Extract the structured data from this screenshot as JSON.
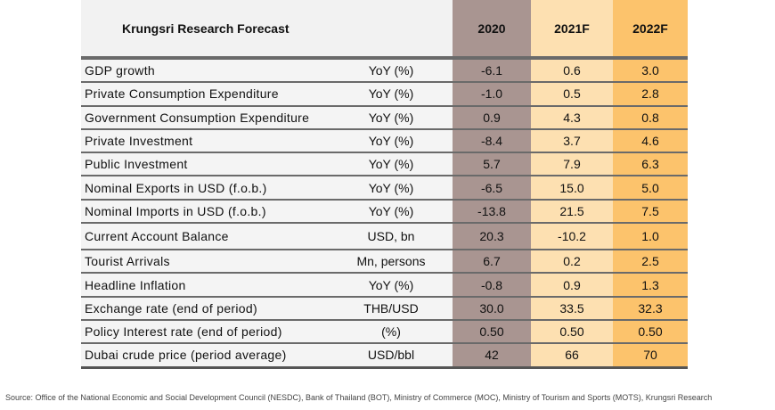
{
  "header": {
    "title": "Krungsri Research Forecast",
    "years": [
      "2020",
      "2021F",
      "2022F"
    ]
  },
  "rows": [
    {
      "label": "GDP growth",
      "unit": "YoY (%)",
      "values": [
        "-6.1",
        "0.6",
        "3.0"
      ]
    },
    {
      "label": "Private Consumption Expenditure",
      "unit": "YoY (%)",
      "values": [
        "-1.0",
        "0.5",
        "2.8"
      ]
    },
    {
      "label": "Government Consumption Expenditure",
      "unit": "YoY (%)",
      "values": [
        "0.9",
        "4.3",
        "0.8"
      ]
    },
    {
      "label": "Private Investment",
      "unit": "YoY (%)",
      "values": [
        "-8.4",
        "3.7",
        "4.6"
      ]
    },
    {
      "label": "Public Investment",
      "unit": "YoY (%)",
      "values": [
        "5.7",
        "7.9",
        "6.3"
      ]
    },
    {
      "label": "Nominal Exports in USD (f.o.b.)",
      "unit": "YoY (%)",
      "values": [
        "-6.5",
        "15.0",
        "5.0"
      ]
    },
    {
      "label": "Nominal Imports in USD (f.o.b.)",
      "unit": "YoY (%)",
      "values": [
        "-13.8",
        "21.5",
        "7.5"
      ]
    },
    {
      "label": "Current Account Balance",
      "unit": "USD, bn",
      "values": [
        "20.3",
        "-10.2",
        "1.0"
      ]
    },
    {
      "label": "Tourist Arrivals",
      "unit": "Mn, persons",
      "values": [
        "6.7",
        "0.2",
        "2.5"
      ]
    },
    {
      "label": "Headline Inflation",
      "unit": "YoY (%)",
      "values": [
        "-0.8",
        "0.9",
        "1.3"
      ]
    },
    {
      "label": "Exchange rate (end of period)",
      "unit": "THB/USD",
      "values": [
        "30.0",
        "33.5",
        "32.3"
      ]
    },
    {
      "label": "Policy Interest rate (end of period)",
      "unit": "(%)",
      "values": [
        "0.50",
        "0.50",
        "0.50"
      ]
    },
    {
      "label": "Dubai crude price (period average)",
      "unit": "USD/bbl",
      "values": [
        "42",
        "66",
        "70"
      ]
    }
  ],
  "source": "Source: Office of the National Economic and Social Development Council (NESDC), Bank of Thailand (BOT), Ministry of Commerce (MOC), Ministry of Tourism and Sports (MOTS), Krungsri Research",
  "colors": {
    "col2020": "#a99591",
    "col2021": "#fde0b1",
    "col2022": "#fcc36c"
  }
}
